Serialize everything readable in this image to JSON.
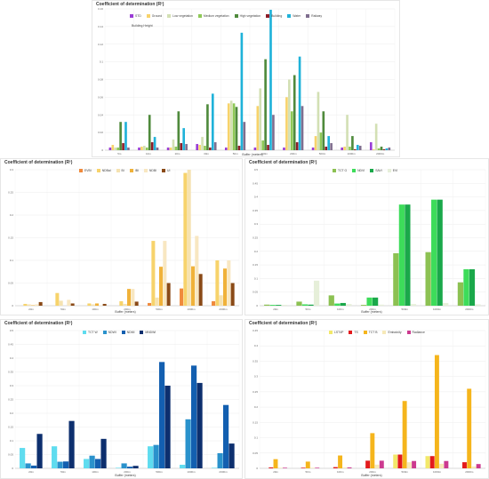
{
  "chart_data": [
    {
      "type": "bar",
      "title": "Coefficient of determination (R²)",
      "subtitle": "Building Height",
      "xlabel": "Buffer (meters)",
      "ylabel": "",
      "ylim": [
        0,
        0.16
      ],
      "yticks": [
        "0",
        "0.02",
        "0.04",
        "0.06",
        "0.08",
        "0.1",
        "0.12",
        "0.14",
        "0.16"
      ],
      "categories": [
        "5m",
        "10m",
        "20m",
        "30m",
        "50m",
        "100m",
        "200m",
        "500m",
        "1000m",
        "2000m"
      ],
      "series": [
        {
          "name": "STD",
          "color": "#9b3dd6",
          "values": [
            0.003,
            0.003,
            0.003,
            0.007,
            0.003,
            0.003,
            0.003,
            0.003,
            0.003,
            0.009
          ]
        },
        {
          "name": "Ground",
          "color": "#f7d36b",
          "values": [
            0.006,
            0.004,
            0.003,
            0.006,
            0.053,
            0.05,
            0.06,
            0.016,
            0.004,
            0.001
          ]
        },
        {
          "name": "Low vegetation",
          "color": "#d3e0b4",
          "values": [
            0.003,
            0.005,
            0.012,
            0.015,
            0.056,
            0.07,
            0.08,
            0.066,
            0.04,
            0.03
          ]
        },
        {
          "name": "Medium vegetation",
          "color": "#8fc957",
          "values": [
            0.003,
            0.003,
            0.004,
            0.005,
            0.053,
            0.011,
            0.044,
            0.02,
            0.004,
            0.002
          ]
        },
        {
          "name": "High vegetation",
          "color": "#4f8a3c",
          "values": [
            0.032,
            0.04,
            0.044,
            0.052,
            0.049,
            0.103,
            0.085,
            0.044,
            0.016,
            0.004
          ]
        },
        {
          "name": "Building",
          "color": "#8c1d28",
          "values": [
            0.008,
            0.009,
            0.008,
            0.003,
            0.005,
            0.006,
            0.009,
            0.004,
            0.001,
            0.001
          ]
        },
        {
          "name": "Water",
          "color": "#1fb2d9",
          "values": [
            0.032,
            0.015,
            0.025,
            0.064,
            0.133,
            0.159,
            0.106,
            0.016,
            0.006,
            0.002
          ]
        },
        {
          "name": "Railway",
          "color": "#7f6e8f",
          "values": [
            0.003,
            0.003,
            0.007,
            0.009,
            0.032,
            0.04,
            0.05,
            0.008,
            0.005,
            0.003
          ]
        }
      ]
    },
    {
      "type": "bar",
      "title": "Coefficient of determination (R²)",
      "xlabel": "Buffer (meters)",
      "ylabel": "",
      "ylim": [
        0,
        0.3
      ],
      "yticks": [
        "0",
        "0.05",
        "0.1",
        "0.15",
        "0.2",
        "0.25",
        "0.3"
      ],
      "categories": [
        "20m",
        "50m",
        "100m",
        "200m",
        "500m",
        "1000m",
        "2000m"
      ],
      "series": [
        {
          "name": "EVBI",
          "color": "#f08a3c",
          "values": [
            0.0,
            0.0,
            0.0,
            0.0,
            0.006,
            0.038,
            0.01
          ]
        },
        {
          "name": "NDBal",
          "color": "#f7d36b",
          "values": [
            0.004,
            0.028,
            0.005,
            0.01,
            0.143,
            0.293,
            0.1
          ]
        },
        {
          "name": "BI",
          "color": "#f5e2b0",
          "values": [
            0.003,
            0.011,
            0.003,
            0.004,
            0.018,
            0.3,
            0.023
          ]
        },
        {
          "name": "IBI",
          "color": "#f0b23a",
          "values": [
            0.001,
            0.0,
            0.005,
            0.037,
            0.086,
            0.087,
            0.082
          ]
        },
        {
          "name": "NDBI",
          "color": "#f8e7c1",
          "values": [
            0.003,
            0.013,
            0.001,
            0.037,
            0.143,
            0.154,
            0.1
          ]
        },
        {
          "name": "UI",
          "color": "#8a4a17",
          "values": [
            0.008,
            0.005,
            0.004,
            0.009,
            0.05,
            0.07,
            0.05
          ]
        }
      ]
    },
    {
      "type": "bar",
      "title": "Coefficient of determination (R²)",
      "xlabel": "Buffer (meters)",
      "ylabel": "",
      "ylim": [
        0,
        0.5
      ],
      "yticks": [
        "0",
        "0.05",
        "0.1",
        "0.15",
        "0.2",
        "0.25",
        "0.3",
        "0.35",
        "0.4",
        "0.45",
        "0.5"
      ],
      "categories": [
        "20m",
        "50m",
        "100m",
        "200m",
        "500m",
        "1000m",
        "2000m"
      ],
      "series": [
        {
          "name": "TCT G",
          "color": "#8cc152",
          "values": [
            0.004,
            0.015,
            0.038,
            0.003,
            0.193,
            0.197,
            0.086
          ]
        },
        {
          "name": "NDVI",
          "color": "#3ddc5a",
          "values": [
            0.003,
            0.005,
            0.008,
            0.03,
            0.372,
            0.39,
            0.134
          ]
        },
        {
          "name": "SAVI",
          "color": "#1aa84a",
          "values": [
            0.003,
            0.004,
            0.01,
            0.03,
            0.372,
            0.39,
            0.134
          ]
        },
        {
          "name": "EVI",
          "color": "#e6efd9",
          "values": [
            0.003,
            0.092,
            0.006,
            0.004,
            0.006,
            0.01,
            0.005
          ]
        }
      ]
    },
    {
      "type": "bar",
      "title": "Coefficient of determination (R²)",
      "xlabel": "Buffer (meters)",
      "ylabel": "",
      "ylim": [
        0,
        0.5
      ],
      "yticks": [
        "0",
        "0.05",
        "0.1",
        "0.15",
        "0.2",
        "0.25",
        "0.3",
        "0.35",
        "0.4",
        "0.45",
        "0.5"
      ],
      "categories": [
        "20m",
        "50m",
        "100m",
        "200m",
        "500m",
        "1000m",
        "2000m"
      ],
      "series": [
        {
          "name": "TCT W",
          "color": "#5fdcef",
          "values": [
            0.074,
            0.08,
            0.034,
            0.002,
            0.08,
            0.013,
            0.002
          ]
        },
        {
          "name": "NDWI",
          "color": "#2a92cc",
          "values": [
            0.018,
            0.024,
            0.046,
            0.018,
            0.085,
            0.178,
            0.055
          ]
        },
        {
          "name": "NDMI",
          "color": "#135fb0",
          "values": [
            0.01,
            0.025,
            0.034,
            0.006,
            0.386,
            0.373,
            0.23
          ]
        },
        {
          "name": "MNDWI",
          "color": "#0d2f6e",
          "values": [
            0.125,
            0.172,
            0.107,
            0.009,
            0.3,
            0.31,
            0.09
          ]
        }
      ]
    },
    {
      "type": "bar",
      "title": "Coefficient of determination (R²)",
      "xlabel": "Buffer (meters)",
      "ylabel": "",
      "ylim": [
        0,
        0.45
      ],
      "yticks": [
        "0",
        "0.05",
        "0.1",
        "0.15",
        "0.2",
        "0.25",
        "0.3",
        "0.35",
        "0.4",
        "0.45"
      ],
      "categories": [
        "20m",
        "50m",
        "100m",
        "200m",
        "500m",
        "1000m",
        "2000m"
      ],
      "series": [
        {
          "name": "LST4P",
          "color": "#f2e86a",
          "values": [
            0.0,
            0.0,
            0.0,
            0.0,
            0.045,
            0.04,
            0.0
          ]
        },
        {
          "name": "TS",
          "color": "#e31a1c",
          "values": [
            0.003,
            0.002,
            0.004,
            0.025,
            0.045,
            0.04,
            0.02
          ]
        },
        {
          "name": "TCT B",
          "color": "#f5b51c",
          "values": [
            0.03,
            0.022,
            0.042,
            0.115,
            0.22,
            0.37,
            0.26
          ]
        },
        {
          "name": "Emissivity",
          "color": "#f6e9b8",
          "values": [
            0.002,
            0.002,
            0.003,
            0.012,
            0.02,
            0.015,
            0.006
          ]
        },
        {
          "name": "Radiance",
          "color": "#cc3a8f",
          "values": [
            0.002,
            0.002,
            0.003,
            0.025,
            0.024,
            0.024,
            0.014
          ]
        }
      ]
    }
  ]
}
